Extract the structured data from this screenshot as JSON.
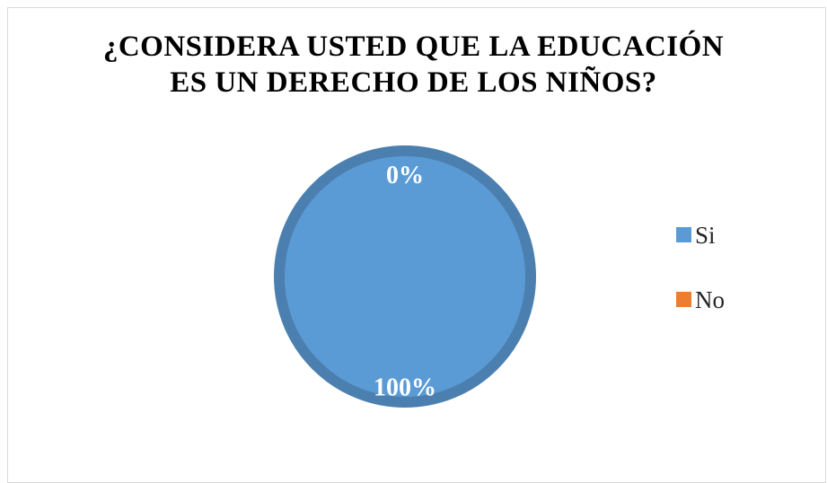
{
  "chart_data": {
    "type": "pie",
    "title_lines": [
      "¿CONSIDERA USTED QUE LA EDUCACIÓN",
      "ES UN DERECHO DE LOS NIÑOS?"
    ],
    "categories": [
      "Si",
      "No"
    ],
    "values": [
      100,
      0
    ],
    "data_labels": [
      "100%",
      "0%"
    ],
    "colors": [
      "#5b9bd5",
      "#ed7d31"
    ],
    "legend": "right"
  }
}
